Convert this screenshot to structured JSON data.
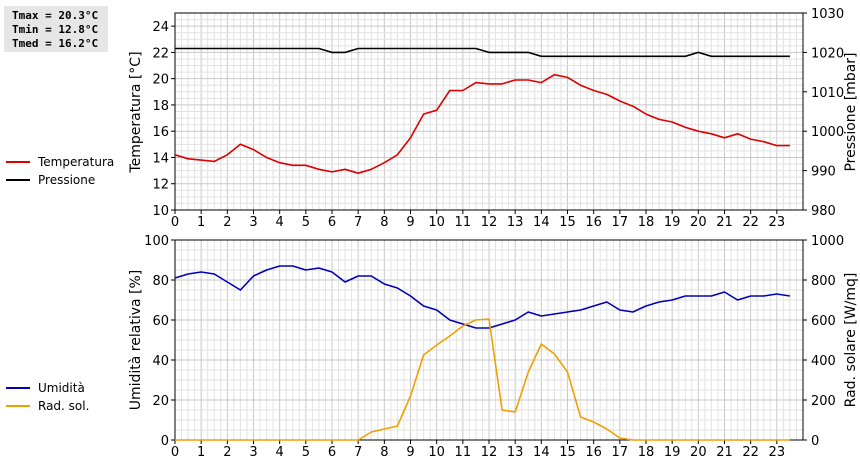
{
  "stats": {
    "tmax": "Tmax = 20.3°C",
    "tmin": "Tmin = 12.8°C",
    "tmed": "Tmed = 16.2°C"
  },
  "chart_data": [
    {
      "type": "line",
      "title": "",
      "xlabel": "",
      "ylabel": "Temperatura [°C]",
      "y2label": "Pressione [mbar]",
      "xlim": [
        0,
        24
      ],
      "ylim": [
        10,
        25
      ],
      "y2lim": [
        980,
        1030
      ],
      "xticks": [
        0,
        1,
        2,
        3,
        4,
        5,
        6,
        7,
        8,
        9,
        10,
        11,
        12,
        13,
        14,
        15,
        16,
        17,
        18,
        19,
        20,
        21,
        22,
        23
      ],
      "yticks": [
        10,
        12,
        14,
        16,
        18,
        20,
        22,
        24
      ],
      "y2ticks": [
        980,
        990,
        1000,
        1010,
        1020,
        1030
      ],
      "grid": true,
      "legend_position": "left",
      "series": [
        {
          "name": "Temperatura",
          "axis": "left",
          "color": "#dd0000",
          "x": [
            0,
            0.5,
            1,
            1.5,
            2,
            2.5,
            3,
            3.5,
            4,
            4.5,
            5,
            5.5,
            6,
            6.5,
            7,
            7.5,
            8,
            8.5,
            9,
            9.5,
            10,
            10.5,
            11,
            11.5,
            12,
            12.5,
            13,
            13.5,
            14,
            14.5,
            15,
            15.5,
            16,
            16.5,
            17,
            17.5,
            18,
            18.5,
            19,
            19.5,
            20,
            20.5,
            21,
            21.5,
            22,
            22.5,
            23,
            23.5
          ],
          "values": [
            14.2,
            13.9,
            13.8,
            13.7,
            14.2,
            15.0,
            14.6,
            14.0,
            13.6,
            13.4,
            13.4,
            13.1,
            12.9,
            13.1,
            12.8,
            13.1,
            13.6,
            14.2,
            15.5,
            17.3,
            17.6,
            19.1,
            19.1,
            19.7,
            19.6,
            19.6,
            19.9,
            19.9,
            19.7,
            20.3,
            20.1,
            19.5,
            19.1,
            18.8,
            18.3,
            17.9,
            17.3,
            16.9,
            16.7,
            16.3,
            16.0,
            15.8,
            15.5,
            15.8,
            15.4,
            15.2,
            14.9,
            14.9
          ]
        },
        {
          "name": "Pressione",
          "axis": "right",
          "color": "#000000",
          "x": [
            0,
            0.5,
            1,
            1.5,
            2,
            2.5,
            3,
            3.5,
            4,
            4.5,
            5,
            5.5,
            6,
            6.5,
            7,
            7.5,
            8,
            8.5,
            9,
            9.5,
            10,
            10.5,
            11,
            11.5,
            12,
            12.5,
            13,
            13.5,
            14,
            14.5,
            15,
            15.5,
            16,
            16.5,
            17,
            17.5,
            18,
            18.5,
            19,
            19.5,
            20,
            20.5,
            21,
            21.5,
            22,
            22.5,
            23,
            23.5
          ],
          "values": [
            1021,
            1021,
            1021,
            1021,
            1021,
            1021,
            1021,
            1021,
            1021,
            1021,
            1021,
            1021,
            1020,
            1020,
            1021,
            1021,
            1021,
            1021,
            1021,
            1021,
            1021,
            1021,
            1021,
            1021,
            1020,
            1020,
            1020,
            1020,
            1019,
            1019,
            1019,
            1019,
            1019,
            1019,
            1019,
            1019,
            1019,
            1019,
            1019,
            1019,
            1020,
            1019,
            1019,
            1019,
            1019,
            1019,
            1019,
            1019
          ]
        }
      ]
    },
    {
      "type": "line",
      "title": "",
      "xlabel": "",
      "ylabel": "Umidità relativa [%]",
      "y2label": "Rad. solare [W/mq]",
      "xlim": [
        0,
        24
      ],
      "ylim": [
        0,
        100
      ],
      "y2lim": [
        0,
        1000
      ],
      "xticks": [
        0,
        1,
        2,
        3,
        4,
        5,
        6,
        7,
        8,
        9,
        10,
        11,
        12,
        13,
        14,
        15,
        16,
        17,
        18,
        19,
        20,
        21,
        22,
        23
      ],
      "yticks": [
        0,
        20,
        40,
        60,
        80,
        100
      ],
      "y2ticks": [
        0,
        200,
        400,
        600,
        800,
        1000
      ],
      "grid": true,
      "legend_position": "left",
      "series": [
        {
          "name": "Umidità",
          "axis": "left",
          "color": "#0000bb",
          "x": [
            0,
            0.5,
            1,
            1.5,
            2,
            2.5,
            3,
            3.5,
            4,
            4.5,
            5,
            5.5,
            6,
            6.5,
            7,
            7.5,
            8,
            8.5,
            9,
            9.5,
            10,
            10.5,
            11,
            11.5,
            12,
            12.5,
            13,
            13.5,
            14,
            14.5,
            15,
            15.5,
            16,
            16.5,
            17,
            17.5,
            18,
            18.5,
            19,
            19.5,
            20,
            20.5,
            21,
            21.5,
            22,
            22.5,
            23,
            23.5
          ],
          "values": [
            81,
            83,
            84,
            83,
            79,
            75,
            82,
            85,
            87,
            87,
            85,
            86,
            84,
            79,
            82,
            82,
            78,
            76,
            72,
            67,
            65,
            60,
            58,
            56,
            56,
            58,
            60,
            64,
            62,
            63,
            64,
            65,
            67,
            69,
            65,
            64,
            67,
            69,
            70,
            72,
            72,
            72,
            74,
            70,
            72,
            72,
            73,
            72
          ]
        },
        {
          "name": "Rad. sol.",
          "axis": "right",
          "color": "#f0a000",
          "x": [
            0,
            0.5,
            1,
            1.5,
            2,
            2.5,
            3,
            3.5,
            4,
            4.5,
            5,
            5.5,
            6,
            6.5,
            7,
            7.5,
            8,
            8.5,
            9,
            9.5,
            10,
            10.5,
            11,
            11.5,
            12,
            12.5,
            13,
            13.5,
            14,
            14.5,
            15,
            15.5,
            16,
            16.5,
            17,
            17.5,
            18,
            18.5,
            19,
            19.5,
            20,
            20.5,
            21,
            21.5,
            22,
            22.5,
            23,
            23.5
          ],
          "values": [
            0,
            0,
            0,
            0,
            0,
            0,
            0,
            0,
            0,
            0,
            0,
            0,
            0,
            0,
            0,
            40,
            55,
            70,
            220,
            425,
            475,
            520,
            570,
            600,
            605,
            150,
            140,
            340,
            480,
            430,
            340,
            115,
            90,
            55,
            10,
            0,
            0,
            0,
            0,
            0,
            0,
            0,
            0,
            0,
            0,
            0,
            0,
            0
          ]
        }
      ]
    }
  ]
}
